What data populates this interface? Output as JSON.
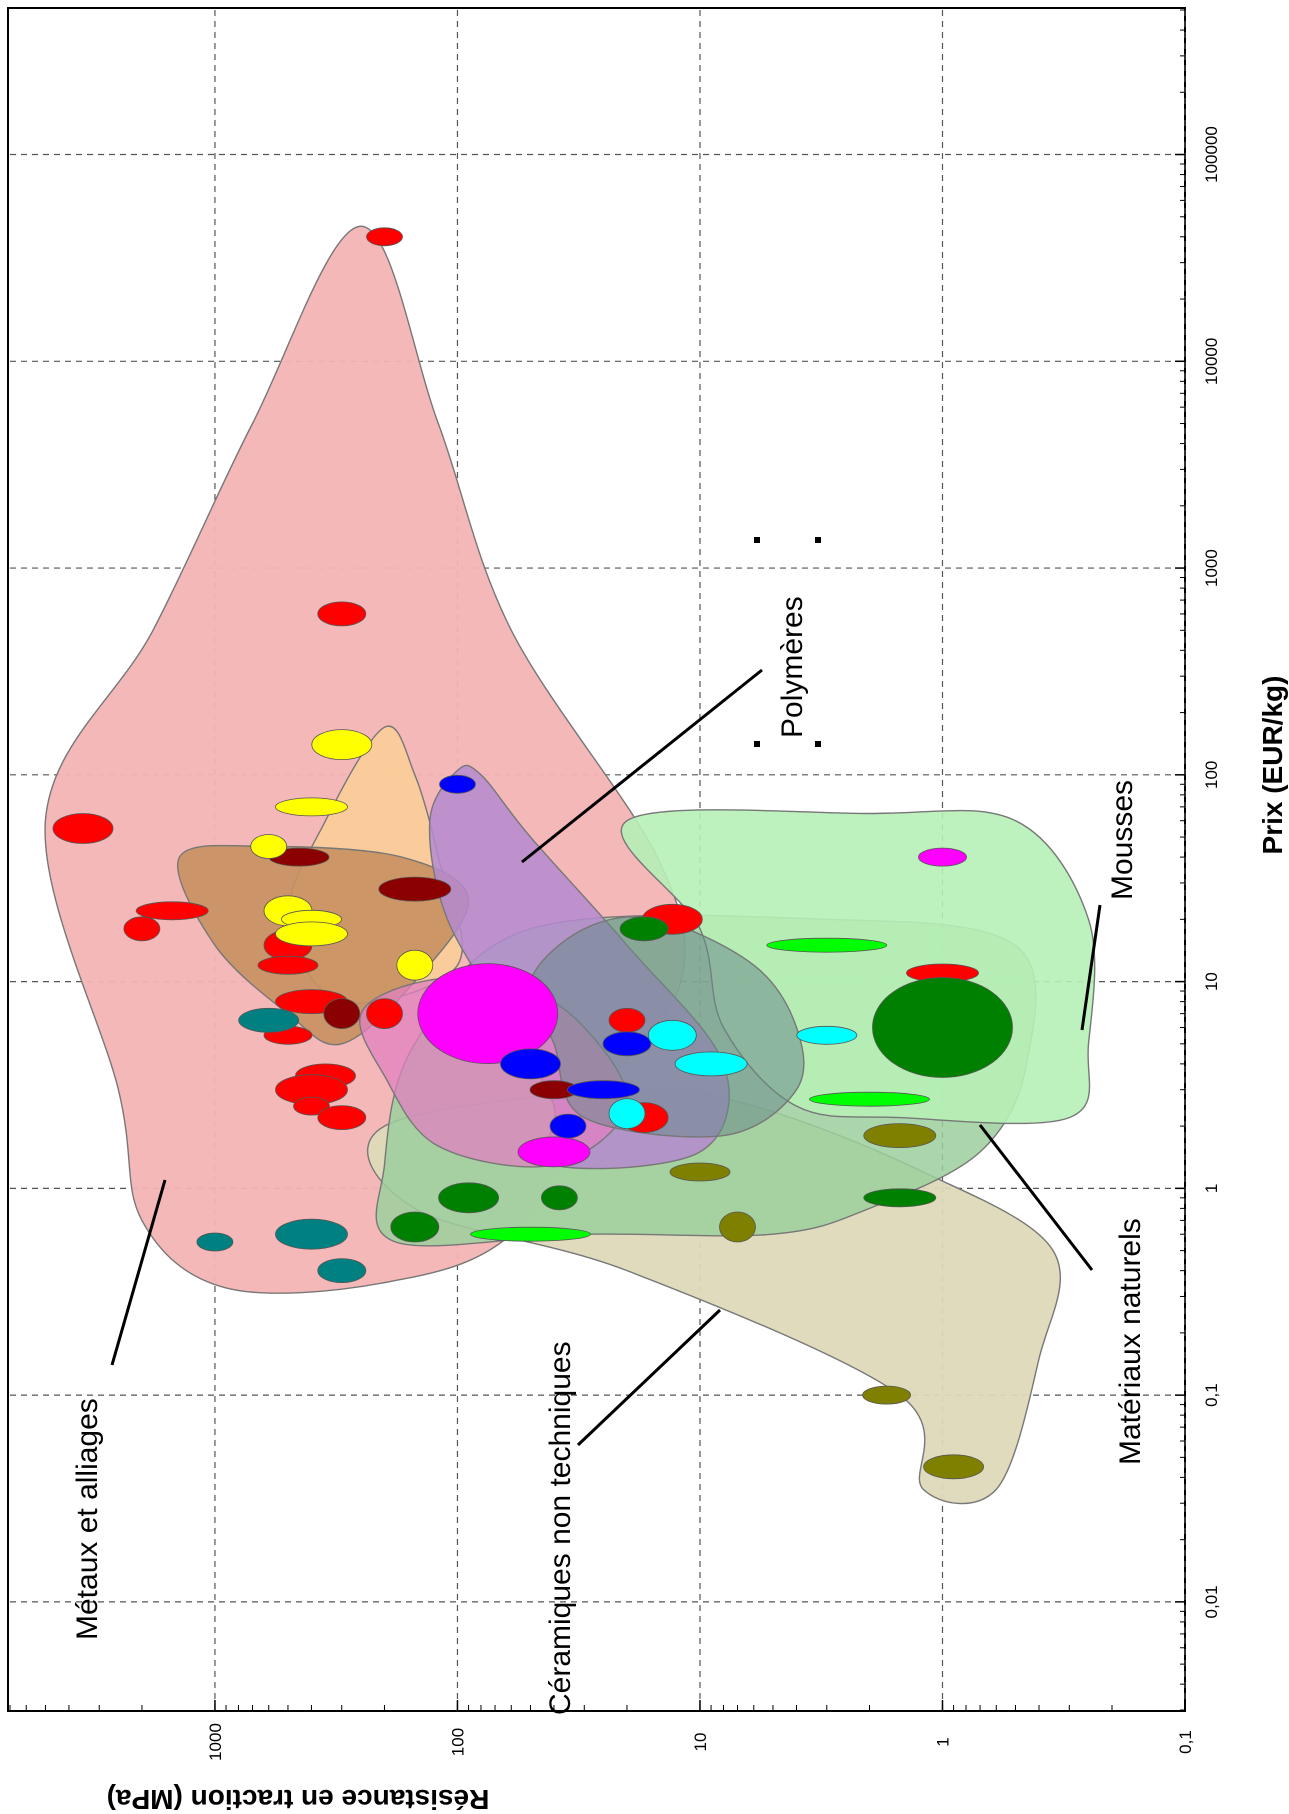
{
  "chart_data": {
    "type": "scatter",
    "title": "",
    "xlabel": "Prix (EUR/kg)",
    "ylabel": "Résistance en traction (MPa)",
    "x_scale": "log",
    "y_scale": "log",
    "xlim": [
      0.003,
      500000
    ],
    "ylim": [
      0.1,
      7000
    ],
    "x_ticks": [
      "0,01",
      "0,1",
      "1",
      "10",
      "100",
      "1000",
      "10000",
      "100000"
    ],
    "x_tick_values": [
      0.01,
      0.1,
      1,
      10,
      100,
      1000,
      10000,
      100000
    ],
    "y_ticks": [
      "1000",
      "100",
      "10",
      "1",
      "0,1"
    ],
    "y_tick_values": [
      1000,
      100,
      10,
      1,
      0.1
    ],
    "grid": true,
    "rotation": "plot rotated 90 degrees clockwise",
    "colors": {
      "metals_envelope": "#f4b4b4",
      "ceramics_envelope": "#ddd9b8",
      "natural_envelope": "#9ccf9c",
      "foams_envelope": "#b6f0b6",
      "polymers_envelope": "#b48ad0",
      "composites_envelope": "#c89060",
      "glass_envelope": "#fbcc99",
      "elastomers_envelope": "#e080c0"
    },
    "groups": [
      {
        "name": "Métaux et alliages",
        "price_range": [
          0.3,
          45000
        ],
        "strength_range": [
          10,
          5000
        ]
      },
      {
        "name": "Céramiques non techniques",
        "price_range": [
          0.03,
          2
        ],
        "strength_range": [
          0.8,
          200
        ]
      },
      {
        "name": "Matériaux naturels",
        "price_range": [
          0.5,
          20
        ],
        "strength_range": [
          0.6,
          200
        ]
      },
      {
        "name": "Mousses",
        "price_range": [
          2.2,
          65
        ],
        "strength_range": [
          0.25,
          20
        ]
      },
      {
        "name": "Polymères",
        "price_range": [
          1.2,
          110
        ],
        "strength_range": [
          8,
          130
        ]
      }
    ],
    "labels": [
      "Métaux et alliages",
      "Céramiques non techniques",
      "Matériaux naturels",
      "Mousses",
      "Polymères"
    ],
    "materials": [
      {
        "color": "#ff0000",
        "price": 40000,
        "strength": 200
      },
      {
        "color": "#ff0000",
        "price": 600,
        "strength": 300
      },
      {
        "color": "#ff0000",
        "price": 55,
        "strength": 3500
      },
      {
        "color": "#ff0000",
        "price": 22,
        "strength": 1500
      },
      {
        "color": "#ff0000",
        "price": 18,
        "strength": 2000
      },
      {
        "color": "#ff0000",
        "price": 15,
        "strength": 500
      },
      {
        "color": "#ff0000",
        "price": 12,
        "strength": 500
      },
      {
        "color": "#ff0000",
        "price": 8,
        "strength": 400
      },
      {
        "color": "#ff0000",
        "price": 7,
        "strength": 200
      },
      {
        "color": "#ff0000",
        "price": 5.5,
        "strength": 500
      },
      {
        "color": "#ff0000",
        "price": 3.5,
        "strength": 350
      },
      {
        "color": "#ff0000",
        "price": 3,
        "strength": 400
      },
      {
        "color": "#ff0000",
        "price": 2.5,
        "strength": 400
      },
      {
        "color": "#ff0000",
        "price": 2.2,
        "strength": 300
      },
      {
        "color": "#ff0000",
        "price": 20,
        "strength": 13
      },
      {
        "color": "#ff0000",
        "price": 11,
        "strength": 1
      },
      {
        "color": "#ff0000",
        "price": 6.5,
        "strength": 20
      },
      {
        "color": "#ff0000",
        "price": 2.2,
        "strength": 17
      },
      {
        "color": "#8b0000",
        "price": 40,
        "strength": 450
      },
      {
        "color": "#8b0000",
        "price": 28,
        "strength": 150
      },
      {
        "color": "#8b0000",
        "price": 7,
        "strength": 300
      },
      {
        "color": "#8b0000",
        "price": 3,
        "strength": 40
      },
      {
        "color": "#008080",
        "price": 6.5,
        "strength": 600
      },
      {
        "color": "#008080",
        "price": 0.6,
        "strength": 400
      },
      {
        "color": "#008080",
        "price": 0.55,
        "strength": 1000
      },
      {
        "color": "#008080",
        "price": 0.4,
        "strength": 300
      },
      {
        "color": "#ffff00",
        "price": 140,
        "strength": 300
      },
      {
        "color": "#ffff00",
        "price": 70,
        "strength": 400
      },
      {
        "color": "#ffff00",
        "price": 45,
        "strength": 600
      },
      {
        "color": "#ffff00",
        "price": 22,
        "strength": 500
      },
      {
        "color": "#ffff00",
        "price": 20,
        "strength": 400
      },
      {
        "color": "#ffff00",
        "price": 17,
        "strength": 400
      },
      {
        "color": "#ffff00",
        "price": 12,
        "strength": 150
      },
      {
        "color": "#ff00ff",
        "price": 40,
        "strength": 1
      },
      {
        "color": "#ff00ff",
        "price": 7,
        "strength": 75
      },
      {
        "color": "#ff00ff",
        "price": 1.5,
        "strength": 40
      },
      {
        "color": "#0000ff",
        "price": 90,
        "strength": 100
      },
      {
        "color": "#0000ff",
        "price": 5,
        "strength": 20
      },
      {
        "color": "#0000ff",
        "price": 4,
        "strength": 50
      },
      {
        "color": "#0000ff",
        "price": 3,
        "strength": 25
      },
      {
        "color": "#0000ff",
        "price": 2,
        "strength": 35
      },
      {
        "color": "#00ffff",
        "price": 5.5,
        "strength": 13
      },
      {
        "color": "#00ffff",
        "price": 5.5,
        "strength": 3
      },
      {
        "color": "#00ffff",
        "price": 4,
        "strength": 9
      },
      {
        "color": "#00ffff",
        "price": 2.3,
        "strength": 20
      },
      {
        "color": "#00ff00",
        "price": 15,
        "strength": 3
      },
      {
        "color": "#00ff00",
        "price": 2.7,
        "strength": 2
      },
      {
        "color": "#00ff00",
        "price": 0.6,
        "strength": 50
      },
      {
        "color": "#008000",
        "price": 6,
        "strength": 1
      },
      {
        "color": "#008000",
        "price": 18,
        "strength": 17
      },
      {
        "color": "#008000",
        "price": 0.9,
        "strength": 90
      },
      {
        "color": "#008000",
        "price": 0.9,
        "strength": 1.5
      },
      {
        "color": "#008000",
        "price": 0.9,
        "strength": 38
      },
      {
        "color": "#008000",
        "price": 0.65,
        "strength": 150
      },
      {
        "color": "#808000",
        "price": 1.2,
        "strength": 10
      },
      {
        "color": "#808000",
        "price": 1.8,
        "strength": 1.5
      },
      {
        "color": "#808000",
        "price": 0.65,
        "strength": 7
      },
      {
        "color": "#808000",
        "price": 0.1,
        "strength": 1.7
      },
      {
        "color": "#808000",
        "price": 0.045,
        "strength": 0.9
      }
    ]
  }
}
